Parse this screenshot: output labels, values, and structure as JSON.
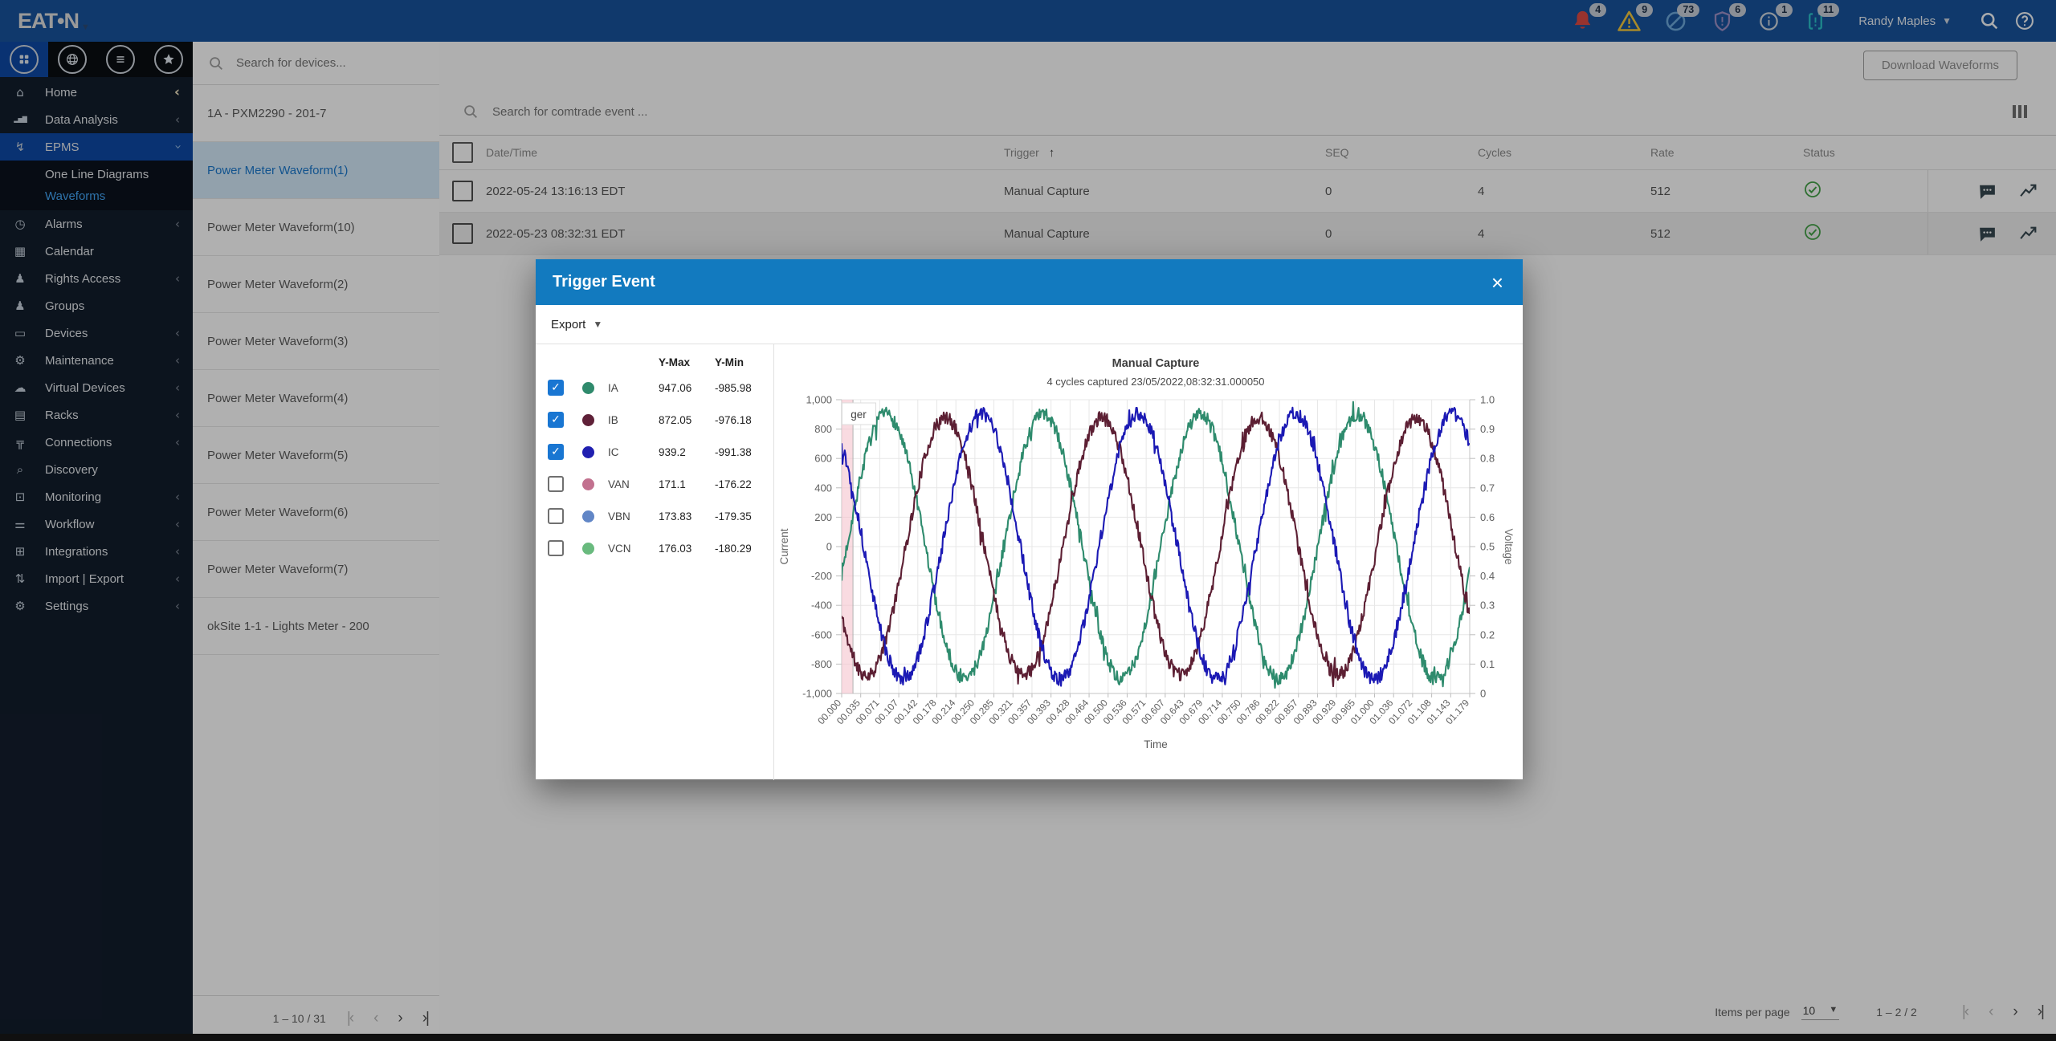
{
  "topbar": {
    "logo": "EAT•N",
    "notifications": [
      {
        "icon": "bell-icon",
        "count": "4",
        "color": "#db4a42"
      },
      {
        "icon": "warning-triangle-icon",
        "count": "9",
        "color": "#efc53d"
      },
      {
        "icon": "circle-slash-icon",
        "count": "73",
        "color": "#6ca6d8"
      },
      {
        "icon": "shield-alert-icon",
        "count": "6",
        "color": "#9a8fc4"
      },
      {
        "icon": "info-circle-icon",
        "count": "1",
        "color": "#ccd4dc"
      },
      {
        "icon": "device-alert-icon",
        "count": "11",
        "color": "#2cc0c7"
      }
    ],
    "user_name": "Randy Maples"
  },
  "sidebar": {
    "quick_icons": [
      "apps-grid-icon",
      "globe-icon",
      "list-icon",
      "star-icon"
    ],
    "items": [
      {
        "label": "Home",
        "icon": "home-icon",
        "chevron": "collapse"
      },
      {
        "label": "Data Analysis",
        "icon": "data-analysis-icon",
        "chevron": "left"
      },
      {
        "label": "EPMS",
        "icon": "epms-icon",
        "chevron": "down",
        "active": true,
        "children": [
          {
            "label": "One Line Diagrams",
            "active": false
          },
          {
            "label": "Waveforms",
            "active": true
          }
        ]
      },
      {
        "label": "Alarms",
        "icon": "alarms-icon",
        "chevron": "left"
      },
      {
        "label": "Calendar",
        "icon": "calendar-icon",
        "chevron": ""
      },
      {
        "label": "Rights Access",
        "icon": "rights-access-icon",
        "chevron": "left"
      },
      {
        "label": "Groups",
        "icon": "groups-icon",
        "chevron": ""
      },
      {
        "label": "Devices",
        "icon": "devices-icon",
        "chevron": "left"
      },
      {
        "label": "Maintenance",
        "icon": "maintenance-icon",
        "chevron": "left"
      },
      {
        "label": "Virtual Devices",
        "icon": "virtual-devices-icon",
        "chevron": "left"
      },
      {
        "label": "Racks",
        "icon": "racks-icon",
        "chevron": "left"
      },
      {
        "label": "Connections",
        "icon": "connections-icon",
        "chevron": "left"
      },
      {
        "label": "Discovery",
        "icon": "discovery-icon",
        "chevron": ""
      },
      {
        "label": "Monitoring",
        "icon": "monitoring-icon",
        "chevron": "left"
      },
      {
        "label": "Workflow",
        "icon": "workflow-icon",
        "chevron": "left"
      },
      {
        "label": "Integrations",
        "icon": "integrations-icon",
        "chevron": "left"
      },
      {
        "label": "Import | Export",
        "icon": "import-export-icon",
        "chevron": "left"
      },
      {
        "label": "Settings",
        "icon": "settings-icon",
        "chevron": "left"
      }
    ]
  },
  "device_panel": {
    "search_placeholder": "Search for devices...",
    "items": [
      {
        "label": "1A - PXM2290 - 201-7",
        "selected": false
      },
      {
        "label": "Power Meter Waveform(1)",
        "selected": true
      },
      {
        "label": "Power Meter Waveform(10)",
        "selected": false
      },
      {
        "label": "Power Meter Waveform(2)",
        "selected": false
      },
      {
        "label": "Power Meter Waveform(3)",
        "selected": false
      },
      {
        "label": "Power Meter Waveform(4)",
        "selected": false
      },
      {
        "label": "Power Meter Waveform(5)",
        "selected": false
      },
      {
        "label": "Power Meter Waveform(6)",
        "selected": false
      },
      {
        "label": "Power Meter Waveform(7)",
        "selected": false
      },
      {
        "label": "okSite 1-1 - Lights Meter - 200",
        "selected": false
      }
    ],
    "pagination": {
      "range": "1 – 10 / 31"
    }
  },
  "main": {
    "download_button": "Download Waveforms",
    "search_placeholder": "Search for comtrade event ...",
    "table": {
      "columns": [
        "Date/Time",
        "Trigger",
        "SEQ",
        "Cycles",
        "Rate",
        "Status"
      ],
      "sort_indicator": "↑",
      "rows": [
        {
          "datetime": "2022-05-24 13:16:13 EDT",
          "trigger": "Manual Capture",
          "seq": "0",
          "cycles": "4",
          "rate": "512",
          "status": "success",
          "highlighted": false
        },
        {
          "datetime": "2022-05-23 08:32:31 EDT",
          "trigger": "Manual Capture",
          "seq": "0",
          "cycles": "4",
          "rate": "512",
          "status": "success",
          "highlighted": true
        }
      ]
    },
    "pagination": {
      "items_per_page_label": "Items per page",
      "items_per_page": "10",
      "range": "1 – 2 / 2"
    }
  },
  "modal": {
    "title": "Trigger Event",
    "export_label": "Export",
    "legend": {
      "col_ymax": "Y-Max",
      "col_ymin": "Y-Min",
      "rows": [
        {
          "name": "IA",
          "checked": true,
          "color": "#2f8a6c",
          "ymax": "947.06",
          "ymin": "-985.98"
        },
        {
          "name": "IB",
          "checked": true,
          "color": "#5f2138",
          "ymax": "872.05",
          "ymin": "-976.18"
        },
        {
          "name": "IC",
          "checked": true,
          "color": "#201fb0",
          "ymax": "939.2",
          "ymin": "-991.38"
        },
        {
          "name": "VAN",
          "checked": false,
          "color": "#c2718f",
          "ymax": "171.1",
          "ymin": "-176.22"
        },
        {
          "name": "VBN",
          "checked": false,
          "color": "#6186c6",
          "ymax": "173.83",
          "ymin": "-179.35"
        },
        {
          "name": "VCN",
          "checked": false,
          "color": "#69ba7e",
          "ymax": "176.03",
          "ymin": "-180.29"
        }
      ]
    }
  },
  "chart_data": {
    "type": "line",
    "title": "Manual Capture",
    "subtitle": "4 cycles captured 23/05/2022,08:32:31.000050",
    "xlabel": "Time",
    "ylabel_left": "Current",
    "ylabel_right": "Voltage",
    "ylim_left": [
      -1000,
      1000
    ],
    "ylim_right": [
      0,
      1
    ],
    "grid": true,
    "legend_position": "left-panel",
    "x_ticks": [
      "00.000",
      "00.035",
      "00.071",
      "00.107",
      "00.142",
      "00.178",
      "00.214",
      "00.250",
      "00.285",
      "00.321",
      "00.357",
      "00.393",
      "00.428",
      "00.464",
      "00.500",
      "00.536",
      "00.571",
      "00.607",
      "00.643",
      "00.679",
      "00.714",
      "00.750",
      "00.786",
      "00.822",
      "00.857",
      "00.893",
      "00.929",
      "00.965",
      "01.000",
      "01.036",
      "01.072",
      "01.108",
      "01.143",
      "01.179"
    ],
    "y_left_ticks": [
      "1,000",
      "800",
      "600",
      "400",
      "200",
      "0",
      "-200",
      "-400",
      "-600",
      "-800",
      "-1,000"
    ],
    "y_right_ticks": [
      "1.0",
      "0.9",
      "0.8",
      "0.7",
      "0.6",
      "0.5",
      "0.4",
      "0.3",
      "0.2",
      "0.1",
      "0"
    ],
    "cycles": 4,
    "trigger_band": {
      "x_start": 0.0,
      "x_end": 0.018,
      "label_visible": "ger",
      "color": "#f5c3cd"
    },
    "series": [
      {
        "name": "IA",
        "color": "#2e8b6d",
        "amplitude": 900,
        "phase_rad": -0.208,
        "noise": 95,
        "seed": 7,
        "y_max": 947.06,
        "y_min": -985.98,
        "visible": true
      },
      {
        "name": "IB",
        "color": "#5c1f33",
        "amplitude": 875,
        "phase_rad": -2.568,
        "noise": 95,
        "seed": 11,
        "y_max": 872.05,
        "y_min": -976.18,
        "visible": true
      },
      {
        "name": "IC",
        "color": "#1b19b4",
        "amplitude": 905,
        "phase_rad": 2.263,
        "noise": 95,
        "seed": 13,
        "y_max": 939.2,
        "y_min": -991.38,
        "visible": true
      }
    ],
    "hidden_series": [
      {
        "name": "VAN",
        "y_max": 171.1,
        "y_min": -176.22
      },
      {
        "name": "VBN",
        "y_max": 173.83,
        "y_min": -179.35
      },
      {
        "name": "VCN",
        "y_max": 176.03,
        "y_min": -180.29
      }
    ]
  }
}
